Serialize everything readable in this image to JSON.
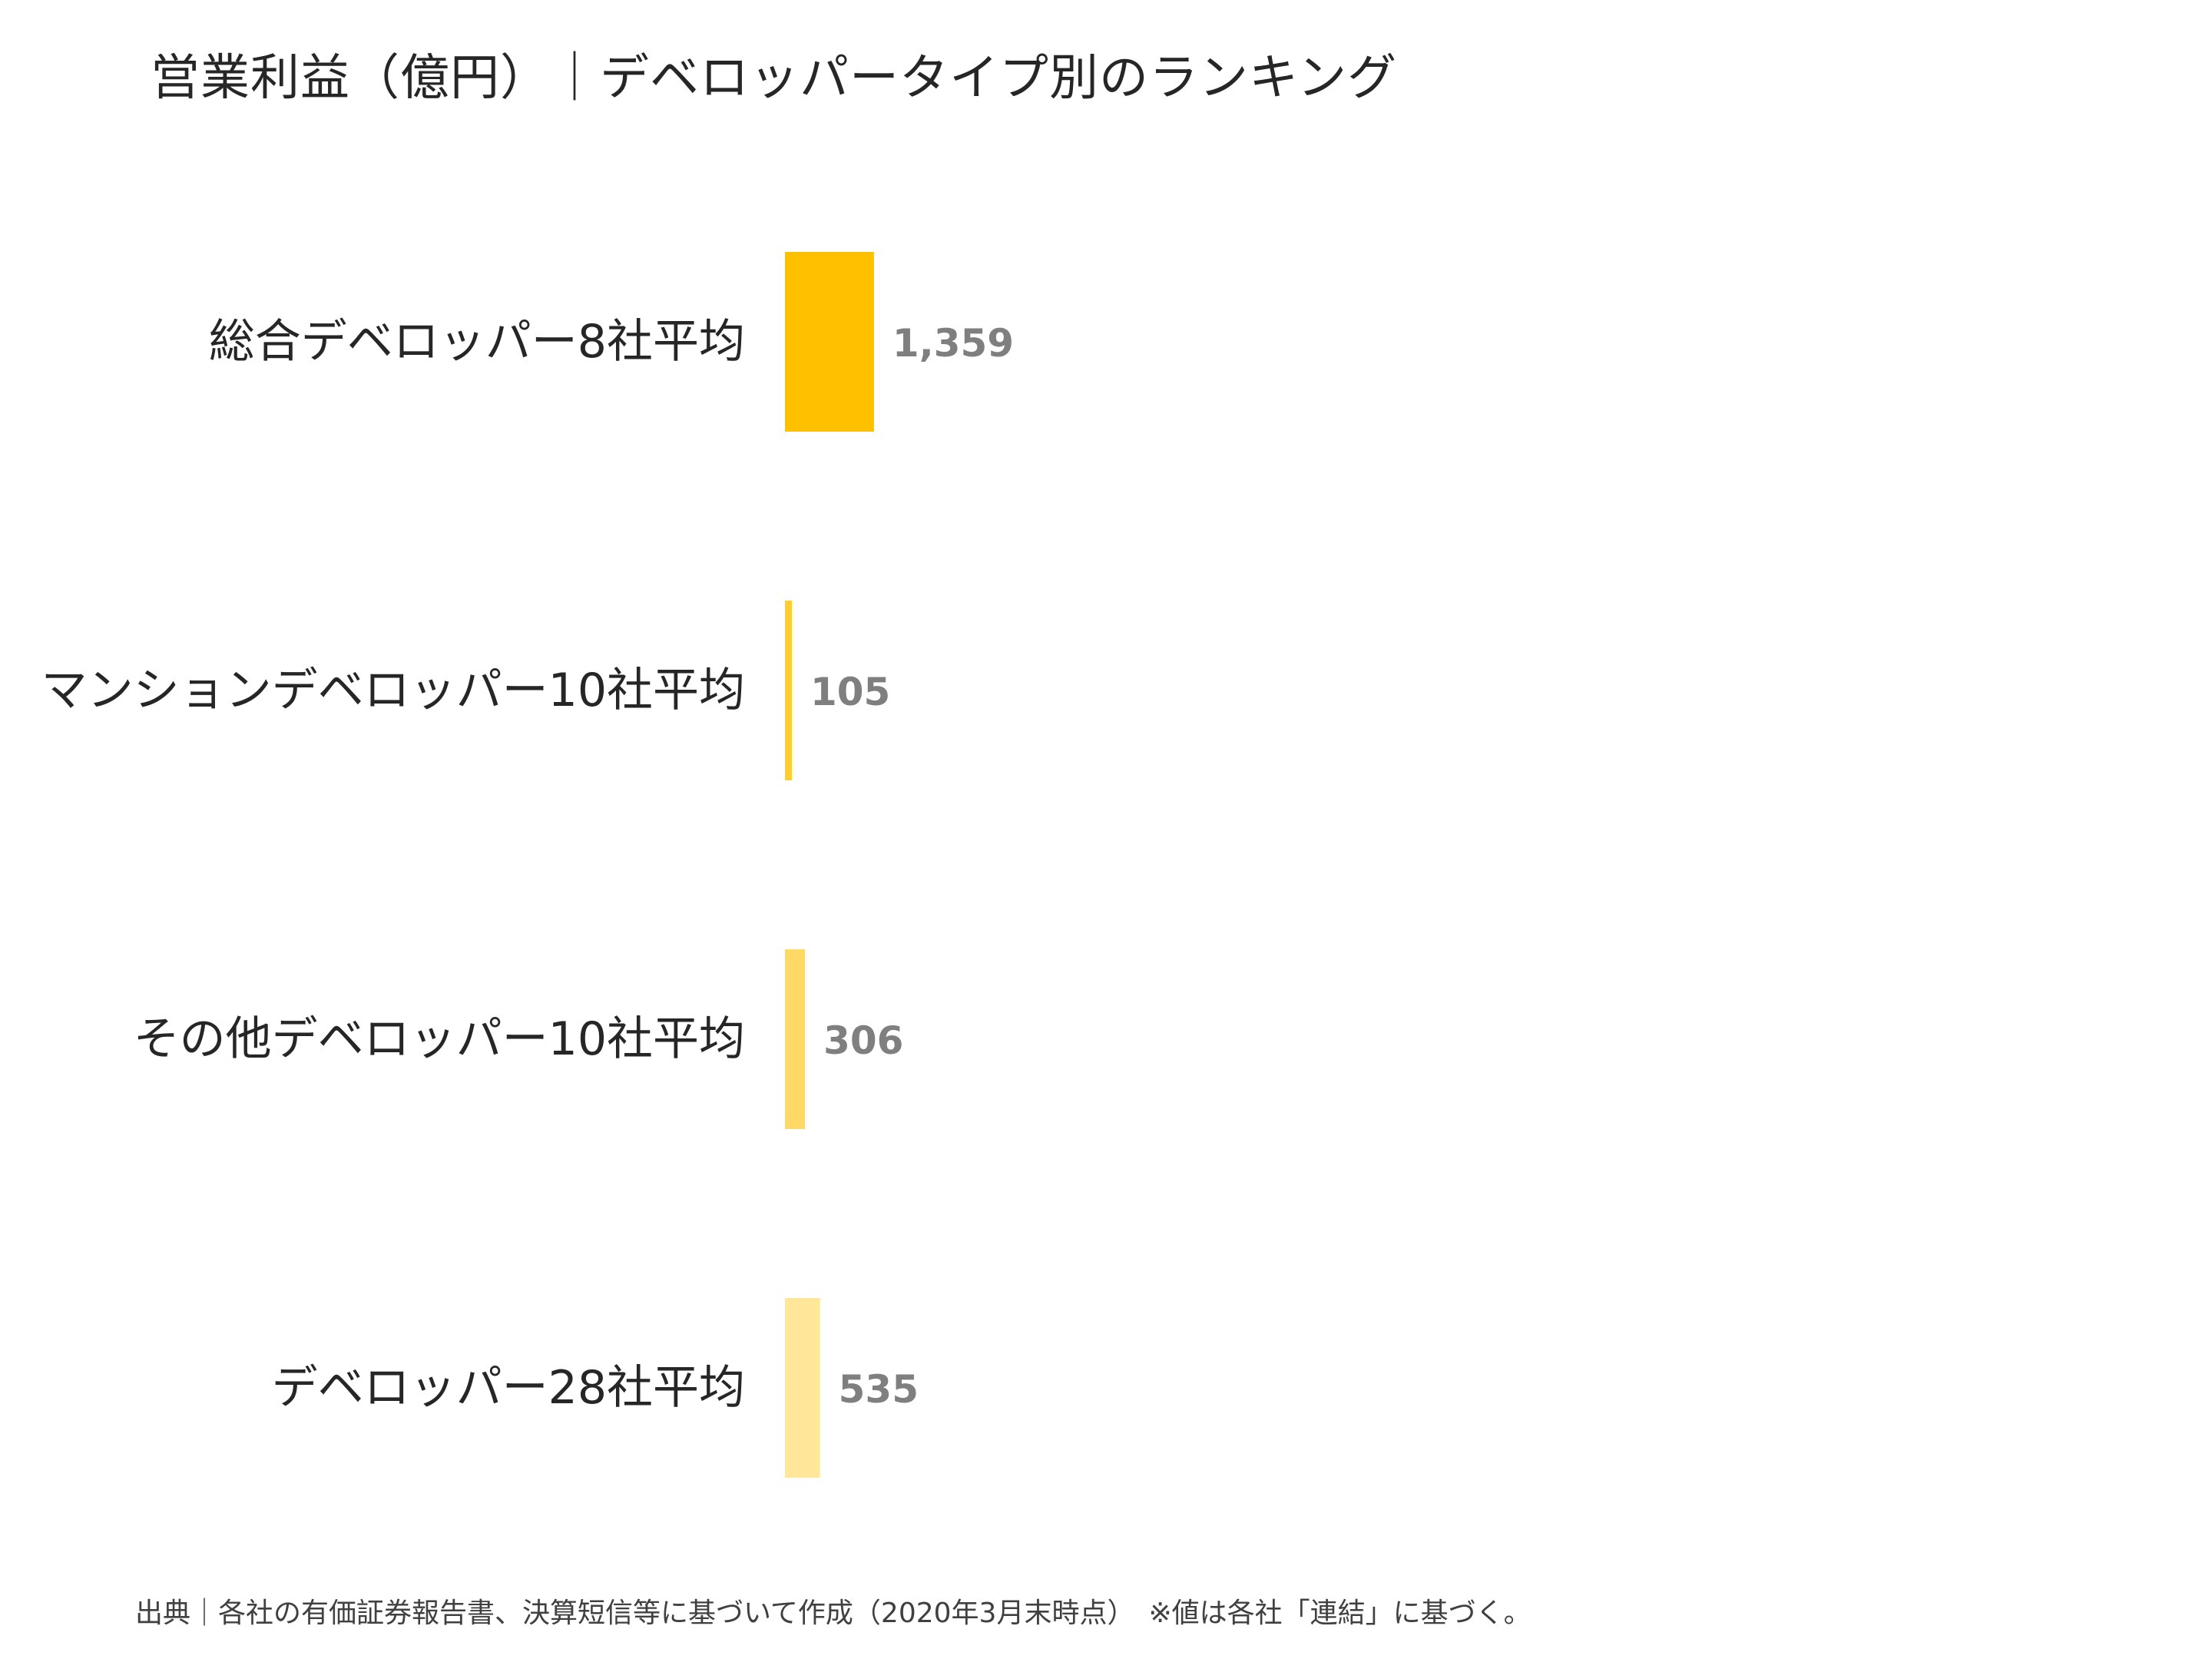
{
  "chart_data": {
    "type": "bar",
    "orientation": "horizontal",
    "title": "営業利益（億円）｜デベロッパータイプ別のランキング",
    "categories": [
      "総合デベロッパー8社平均",
      "マンションデベロッパー10社平均",
      "その他デベロッパー10社平均",
      "デベロッパー28社平均"
    ],
    "values": [
      1359,
      105,
      306,
      535
    ],
    "value_labels": [
      "1,359",
      "105",
      "306",
      "535"
    ],
    "bar_colors": [
      "#FFC000",
      "#FFCD33",
      "#FFD966",
      "#FFE699"
    ],
    "xlim": [
      0,
      13000
    ],
    "grid": false,
    "legend": "none"
  },
  "footer": {
    "source": "出典｜各社の有価証券報告書、決算短信等に基づいて作成（2020年3月末時点）　※値は各社「連結」に基づく。"
  }
}
